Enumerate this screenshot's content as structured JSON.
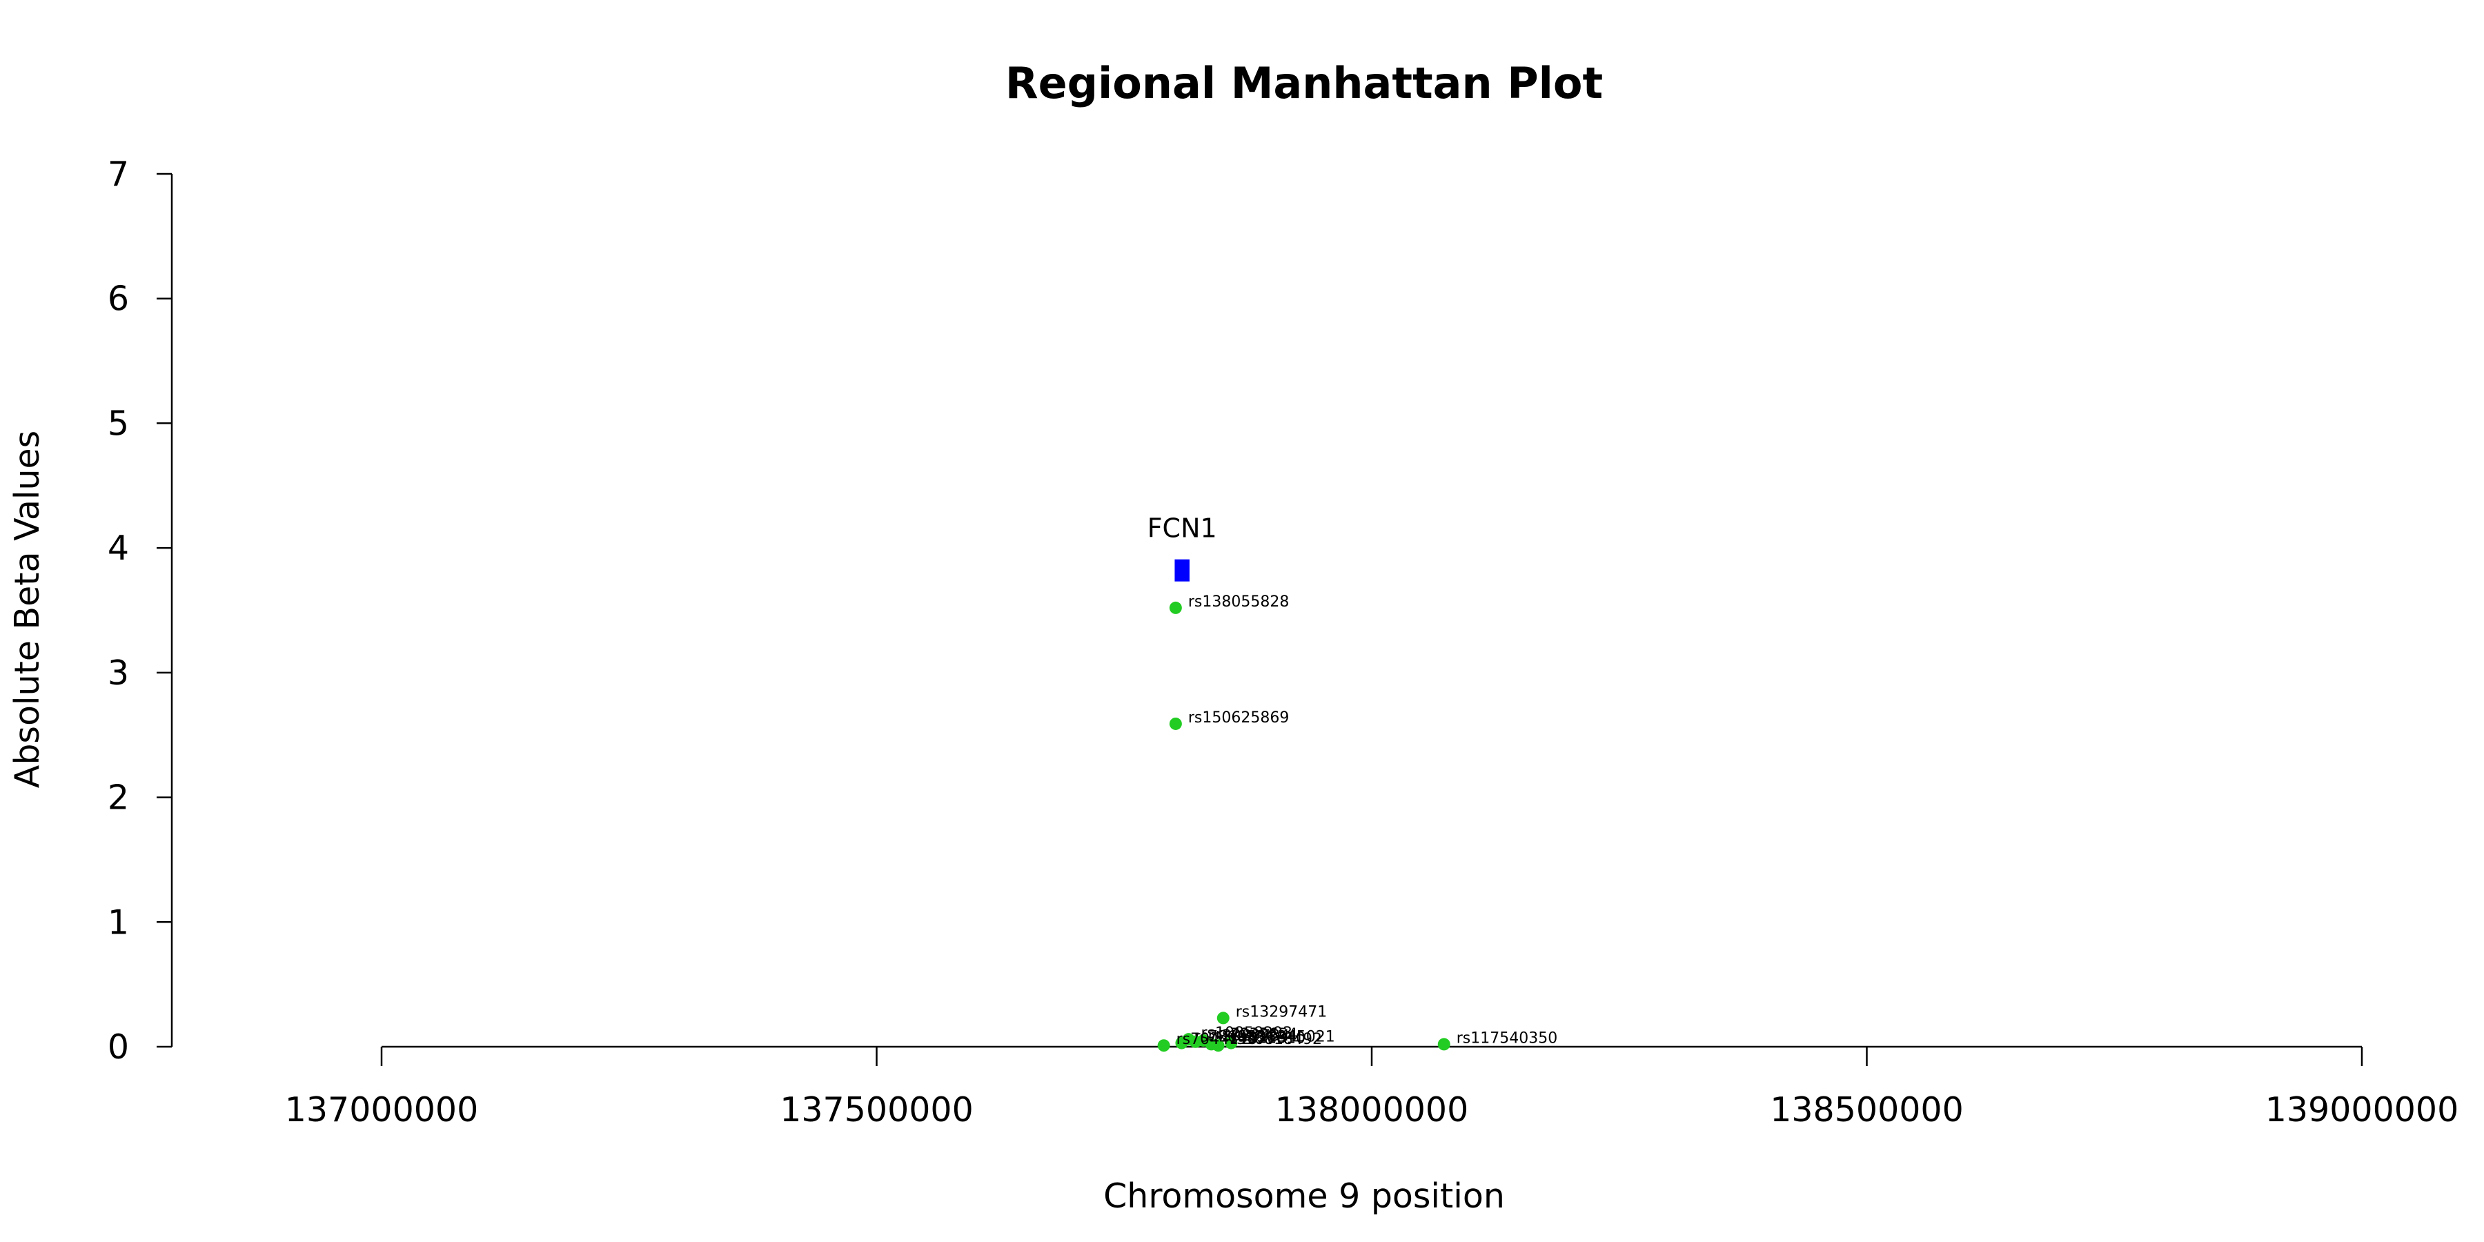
{
  "chart_data": {
    "type": "scatter",
    "title": "Regional Manhattan Plot",
    "xlabel": "Chromosome 9 position",
    "ylabel": "Absolute Beta Values",
    "xlim": [
      137000000,
      139000000
    ],
    "ylim": [
      0,
      7
    ],
    "x_ticks": [
      137000000,
      137500000,
      138000000,
      138500000,
      139000000
    ],
    "x_tick_labels": [
      "137000000",
      "137500000",
      "138000000",
      "138500000",
      "139000000"
    ],
    "y_ticks": [
      0,
      1,
      2,
      3,
      4,
      5,
      6,
      7
    ],
    "y_tick_labels": [
      "0",
      "1",
      "2",
      "3",
      "4",
      "5",
      "6",
      "7"
    ],
    "grid": false,
    "point_color": "#22cc22",
    "gene_color": "#0000ff",
    "genes": [
      {
        "name": "FCN1",
        "start": 137801000,
        "end": 137816000,
        "y": 3.82
      }
    ],
    "points": [
      {
        "label": "rs138055828",
        "x": 137802000,
        "y": 3.52
      },
      {
        "label": "rs150625869",
        "x": 137802000,
        "y": 2.59
      },
      {
        "label": "rs13297471",
        "x": 137850000,
        "y": 0.23
      },
      {
        "label": "rs117540350",
        "x": 138073000,
        "y": 0.02
      },
      {
        "label": "rs10858293",
        "x": 137815000,
        "y": 0.06
      },
      {
        "label": "rs7033654",
        "x": 137830000,
        "y": 0.05
      },
      {
        "label": "rs12345021",
        "x": 137858000,
        "y": 0.03
      },
      {
        "label": "rs4521810",
        "x": 137838000,
        "y": 0.02
      },
      {
        "label": "rs7869336",
        "x": 137808000,
        "y": 0.03
      },
      {
        "label": "rs2989734",
        "x": 137822000,
        "y": 0.04
      },
      {
        "label": "rs10818492",
        "x": 137845000,
        "y": 0.01
      },
      {
        "label": "rs7044119",
        "x": 137790000,
        "y": 0.01
      }
    ]
  }
}
